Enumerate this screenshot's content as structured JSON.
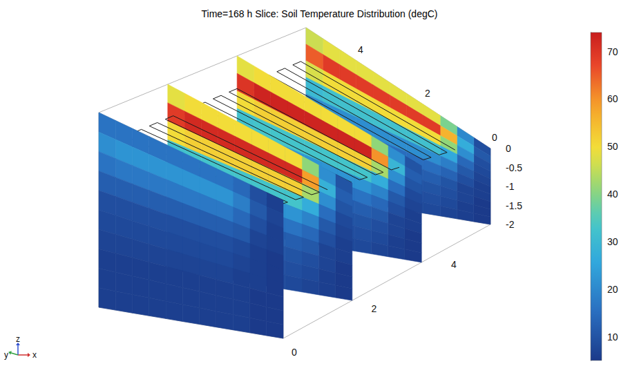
{
  "chart_data": {
    "type": "slice",
    "title": "Time=168 h Slice: Soil Temperature Distribution (degC)",
    "xlim": [
      0,
      5.2
    ],
    "ylim": [
      0,
      5.5
    ],
    "zlim": [
      -2,
      0
    ],
    "xticks": [
      0,
      2,
      4
    ],
    "yticks": [
      0,
      2,
      4
    ],
    "zticks": [
      0,
      -0.5,
      -1,
      -1.5,
      -2
    ],
    "y_edges": [
      0,
      0.5,
      1,
      1.5,
      2,
      2.5,
      3,
      3.5,
      4,
      4.5,
      5,
      5.5
    ],
    "z_edges": [
      0,
      -0.2,
      -0.4,
      -0.6,
      -0.8,
      -1,
      -1.2,
      -1.4,
      -1.6,
      -1.8,
      -2
    ],
    "slices": [
      {
        "x": 0,
        "values": [
          [
            6,
            9,
            14,
            16,
            16,
            16,
            16,
            16,
            16,
            16,
            16
          ],
          [
            7,
            11,
            18,
            22,
            22,
            22,
            22,
            22,
            22,
            22,
            21
          ],
          [
            6,
            9,
            14,
            17,
            17,
            17,
            17,
            17,
            17,
            17,
            16
          ],
          [
            6,
            7,
            11,
            12,
            12,
            12,
            12,
            12,
            12,
            12,
            12
          ],
          [
            5,
            6,
            8,
            9,
            9,
            9,
            9,
            9,
            9,
            9,
            9
          ],
          [
            5,
            6,
            7,
            8,
            8,
            8,
            8,
            8,
            8,
            8,
            8
          ],
          [
            5,
            6,
            6,
            7,
            7,
            7,
            7,
            7,
            7,
            7,
            7
          ],
          [
            5,
            5,
            6,
            6,
            6,
            6,
            6,
            6,
            6,
            6,
            6
          ],
          [
            5,
            5,
            6,
            6,
            6,
            6,
            6,
            6,
            6,
            6,
            6
          ],
          [
            5,
            5,
            6,
            6,
            6,
            6,
            6,
            6,
            6,
            6,
            6
          ]
        ]
      },
      {
        "x": 1.73,
        "values": [
          [
            10,
            21,
            41,
            50,
            50,
            50,
            50,
            50,
            50,
            50,
            48
          ],
          [
            12,
            28,
            59,
            72,
            72,
            72,
            72,
            72,
            72,
            72,
            69
          ],
          [
            10,
            21,
            43,
            52,
            52,
            52,
            52,
            52,
            52,
            52,
            50
          ],
          [
            8,
            15,
            27,
            33,
            33,
            33,
            33,
            33,
            33,
            33,
            32
          ],
          [
            7,
            11,
            19,
            22,
            22,
            22,
            22,
            22,
            22,
            22,
            21
          ],
          [
            6,
            9,
            14,
            16,
            16,
            16,
            16,
            16,
            16,
            16,
            15
          ],
          [
            6,
            7,
            11,
            12,
            12,
            12,
            12,
            12,
            12,
            12,
            12
          ],
          [
            5,
            7,
            9,
            10,
            10,
            10,
            10,
            10,
            10,
            10,
            10
          ],
          [
            5,
            6,
            8,
            9,
            9,
            9,
            9,
            9,
            9,
            9,
            9
          ],
          [
            5,
            6,
            7,
            8,
            8,
            8,
            8,
            8,
            8,
            8,
            8
          ]
        ]
      },
      {
        "x": 3.47,
        "values": [
          [
            10,
            21,
            41,
            50,
            50,
            50,
            50,
            50,
            50,
            50,
            48
          ],
          [
            12,
            29,
            60,
            73,
            73,
            73,
            73,
            73,
            73,
            73,
            70
          ],
          [
            10,
            21,
            43,
            52,
            52,
            52,
            52,
            52,
            52,
            52,
            50
          ],
          [
            8,
            15,
            27,
            33,
            33,
            33,
            33,
            33,
            33,
            33,
            32
          ],
          [
            7,
            11,
            19,
            22,
            22,
            22,
            22,
            22,
            22,
            22,
            21
          ],
          [
            6,
            9,
            14,
            16,
            16,
            16,
            16,
            16,
            16,
            16,
            15
          ],
          [
            6,
            7,
            11,
            12,
            12,
            12,
            12,
            12,
            12,
            12,
            12
          ],
          [
            5,
            7,
            9,
            10,
            10,
            10,
            10,
            10,
            10,
            10,
            10
          ],
          [
            5,
            6,
            8,
            9,
            9,
            9,
            9,
            9,
            9,
            9,
            9
          ],
          [
            5,
            6,
            7,
            8,
            8,
            8,
            8,
            8,
            8,
            8,
            8
          ]
        ]
      },
      {
        "x": 5.2,
        "values": [
          [
            9,
            20,
            39,
            48,
            48,
            48,
            48,
            48,
            48,
            48,
            46
          ],
          [
            11,
            27,
            56,
            69,
            69,
            69,
            69,
            69,
            69,
            69,
            65
          ],
          [
            9,
            21,
            41,
            50,
            50,
            50,
            50,
            50,
            50,
            50,
            47
          ],
          [
            8,
            14,
            26,
            32,
            32,
            32,
            32,
            32,
            32,
            32,
            30
          ],
          [
            7,
            11,
            18,
            21,
            21,
            21,
            21,
            21,
            21,
            21,
            20
          ],
          [
            6,
            9,
            13,
            15,
            15,
            15,
            15,
            15,
            15,
            15,
            15
          ],
          [
            6,
            7,
            10,
            12,
            12,
            12,
            12,
            12,
            12,
            12,
            11
          ],
          [
            5,
            7,
            9,
            10,
            10,
            10,
            10,
            10,
            10,
            10,
            10
          ],
          [
            5,
            6,
            8,
            9,
            9,
            9,
            9,
            9,
            9,
            9,
            9
          ],
          [
            5,
            6,
            7,
            8,
            8,
            8,
            8,
            8,
            8,
            8,
            8
          ]
        ]
      }
    ],
    "pipe": {
      "x_range": [
        0.3,
        4.9
      ],
      "y_range": [
        0.7,
        5.3
      ],
      "z": -0.3,
      "runs": 24
    },
    "colorbar": {
      "range": [
        5,
        74
      ],
      "ticks": [
        10,
        20,
        30,
        40,
        50,
        60,
        70
      ]
    },
    "axis_labels": {
      "x": "x",
      "y": "y",
      "z": "z"
    }
  }
}
